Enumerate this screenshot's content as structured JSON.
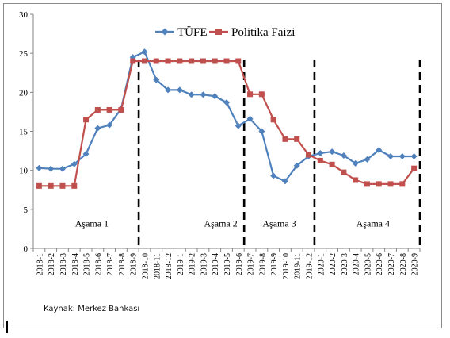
{
  "chart_data": {
    "type": "line",
    "title": "",
    "xlabel": "",
    "ylabel": "",
    "ylim": [
      0,
      30
    ],
    "yticks": [
      0,
      5,
      10,
      15,
      20,
      25,
      30
    ],
    "grid": false,
    "legend_position": "top-center",
    "categories": [
      "2018-1",
      "2018-2",
      "2018-3",
      "2018-4",
      "2018-5",
      "2018-6",
      "2018-7",
      "2018-8",
      "2018-9",
      "2018-10",
      "2018-11",
      "2018-12",
      "2019-1",
      "2019-2",
      "2019-3",
      "2019-4",
      "2019-5",
      "2019-6",
      "2019-7",
      "2019-8",
      "2019-9",
      "2019-10",
      "2019-11",
      "2019-12",
      "2020-1",
      "2020-2",
      "2020-3",
      "2020-4",
      "2020-5",
      "2020-6",
      "2020-7",
      "2020-8",
      "2020-9"
    ],
    "series": [
      {
        "name": "TÜFE",
        "color": "#4f81bd",
        "marker": "diamond",
        "values": [
          10.3,
          10.2,
          10.2,
          10.8,
          12.1,
          15.4,
          15.8,
          17.9,
          24.5,
          25.2,
          21.6,
          20.3,
          20.3,
          19.7,
          19.7,
          19.5,
          18.7,
          15.7,
          16.6,
          15.0,
          9.3,
          8.6,
          10.6,
          11.8,
          12.2,
          12.4,
          11.9,
          10.9,
          11.4,
          12.6,
          11.8,
          11.8,
          11.8
        ]
      },
      {
        "name": "Politika Faizi",
        "color": "#c0504d",
        "marker": "square",
        "values": [
          8.0,
          8.0,
          8.0,
          8.0,
          16.5,
          17.75,
          17.75,
          17.75,
          24.0,
          24.0,
          24.0,
          24.0,
          24.0,
          24.0,
          24.0,
          24.0,
          24.0,
          24.0,
          19.75,
          19.75,
          16.5,
          14.0,
          14.0,
          12.0,
          11.25,
          10.75,
          9.75,
          8.75,
          8.25,
          8.25,
          8.25,
          8.25,
          10.25
        ]
      }
    ],
    "phase_dividers": [
      "2018-9",
      "2019-6",
      "2019-12",
      "2020-9"
    ],
    "phase_labels": [
      {
        "label": "Aşama 1",
        "x": "2018-5",
        "y": 2.8
      },
      {
        "label": "Aşama 2",
        "x": "2019-4",
        "y": 2.8
      },
      {
        "label": "Aşama 3",
        "x": "2019-9",
        "y": 2.8
      },
      {
        "label": "Aşama 4",
        "x": "2020-5",
        "y": 2.8
      }
    ]
  },
  "source_note": "Kaynak: Merkez Bankası"
}
